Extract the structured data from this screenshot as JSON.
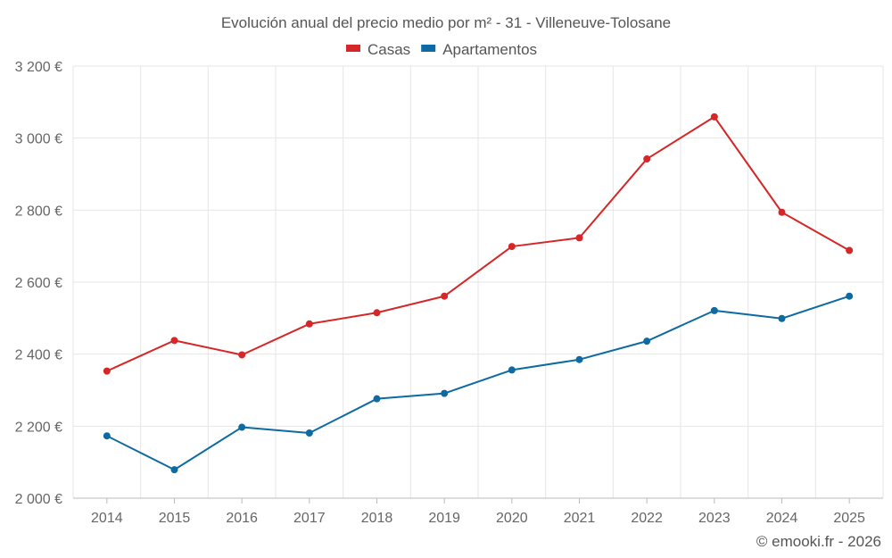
{
  "chart_data": {
    "type": "line",
    "title": "Evolución anual del precio medio por m² - 31 - Villeneuve-Tolosane",
    "categories": [
      "2014",
      "2015",
      "2016",
      "2017",
      "2018",
      "2019",
      "2020",
      "2021",
      "2022",
      "2023",
      "2024",
      "2025"
    ],
    "series": [
      {
        "name": "Casas",
        "color": "#d62728",
        "values": [
          2353,
          2438,
          2398,
          2484,
          2515,
          2561,
          2699,
          2723,
          2942,
          3059,
          2794,
          2688
        ]
      },
      {
        "name": "Apartamentos",
        "color": "#0d6aa3",
        "values": [
          2173,
          2079,
          2197,
          2181,
          2276,
          2291,
          2356,
          2385,
          2436,
          2521,
          2499,
          2561
        ]
      }
    ],
    "ylim": [
      2000,
      3200
    ],
    "yticks": [
      2000,
      2200,
      2400,
      2600,
      2800,
      3000,
      3200
    ],
    "ytick_labels": [
      "2 000 €",
      "2 200 €",
      "2 400 €",
      "2 600 €",
      "2 800 €",
      "3 000 €",
      "3 200 €"
    ],
    "legend_position": "top-center",
    "grid": true
  },
  "credit": "© emooki.fr - 2026"
}
